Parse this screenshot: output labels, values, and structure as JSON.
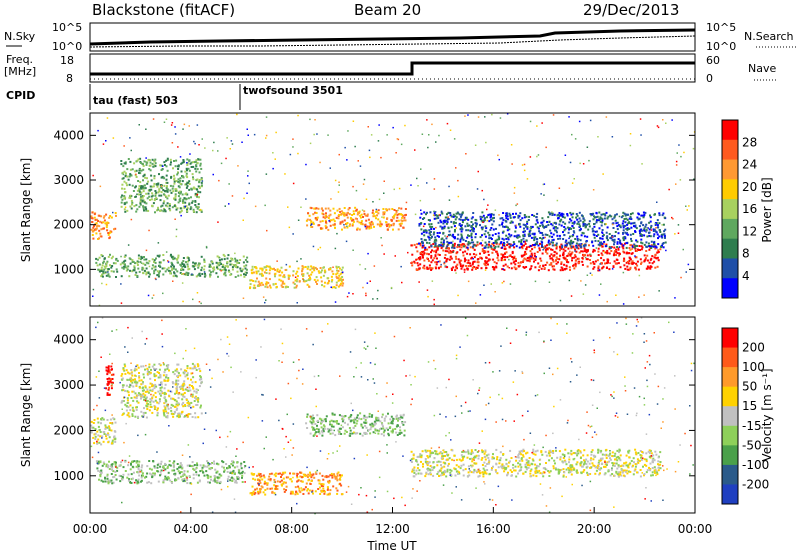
{
  "header": {
    "radar": "Blackstone (fitACF)",
    "beam": "Beam 20",
    "date": "29/Dec/2013"
  },
  "info_panels": {
    "nsky_label": "N.Sky",
    "nsearch_label": "N.Search",
    "noise_ticks": [
      "10^5",
      "10^0"
    ],
    "freq_label_line1": "Freq.",
    "freq_label_line2": "[MHz]",
    "freq_ticks": [
      "18",
      "8"
    ],
    "nave_label": "Nave",
    "nave_ticks": [
      "60",
      "0"
    ],
    "cpid_label": "CPID",
    "cpid_segments": [
      {
        "label": "tau (fast) 503",
        "start_hour": 0.0
      },
      {
        "label": "twofsound 3501",
        "start_hour": 6.0
      }
    ]
  },
  "colors": {
    "power_scale": [
      "#0000ff",
      "#1f4fa8",
      "#2f7d4f",
      "#5fa85f",
      "#a8d15f",
      "#ffcc00",
      "#ff9933",
      "#ff5a1f",
      "#ff0000"
    ],
    "velocity_scale": [
      "#1f3fc0",
      "#2a5a8a",
      "#4aa04a",
      "#8ed05a",
      "#c0c0c0",
      "#ffd200",
      "#ff9a2a",
      "#ff5a1a",
      "#ff0000"
    ]
  },
  "chart_data": [
    {
      "type": "heatmap",
      "name": "power_panel",
      "xlabel": "",
      "ylabel": "Slant Range [km]",
      "xlim": [
        0,
        24
      ],
      "ylim": [
        180,
        4500
      ],
      "y_ticks": [
        "1000",
        "2000",
        "3000",
        "4000"
      ],
      "y_tick_values": [
        1000,
        2000,
        3000,
        4000
      ],
      "colorbar_label": "Power [dB]",
      "colorbar_ticks": [
        "4",
        "8",
        "12",
        "16",
        "20",
        "24",
        "28"
      ],
      "colorbar_values": [
        4,
        8,
        12,
        16,
        20,
        24,
        28
      ],
      "colorbar_range": [
        0,
        32
      ],
      "features": [
        {
          "t0": 0.0,
          "t1": 1.0,
          "r0": 1700,
          "r1": 2300,
          "level": 6
        },
        {
          "t0": 0.2,
          "t1": 6.2,
          "r0": 850,
          "r1": 1350,
          "level": 3
        },
        {
          "t0": 1.2,
          "t1": 4.4,
          "r0": 2300,
          "r1": 3500,
          "level": 3
        },
        {
          "t0": 6.3,
          "t1": 10.0,
          "r0": 600,
          "r1": 1100,
          "level": 5
        },
        {
          "t0": 8.5,
          "t1": 12.5,
          "r0": 1900,
          "r1": 2400,
          "level": 6
        },
        {
          "t0": 12.7,
          "t1": 22.6,
          "r0": 1000,
          "r1": 1600,
          "level": 8
        },
        {
          "t0": 13.0,
          "t1": 22.8,
          "r0": 1500,
          "r1": 2300,
          "level": 1
        }
      ]
    },
    {
      "type": "heatmap",
      "name": "velocity_panel",
      "xlabel": "Time UT",
      "ylabel": "Slant Range [km]",
      "xlim": [
        0,
        24
      ],
      "ylim": [
        180,
        4500
      ],
      "x_ticks": [
        "00:00",
        "04:00",
        "08:00",
        "12:00",
        "16:00",
        "20:00",
        "00:00"
      ],
      "x_tick_values": [
        0,
        4,
        8,
        12,
        16,
        20,
        24
      ],
      "y_ticks": [
        "1000",
        "2000",
        "3000",
        "4000"
      ],
      "y_tick_values": [
        1000,
        2000,
        3000,
        4000
      ],
      "colorbar_label": "Velocity [m s⁻¹]",
      "colorbar_ticks": [
        "200",
        "100",
        "50",
        "15",
        "-15",
        "-50",
        "-100",
        "-200"
      ],
      "features": [
        {
          "t0": 0.0,
          "t1": 1.0,
          "r0": 1700,
          "r1": 2300,
          "level": 4
        },
        {
          "t0": 0.2,
          "t1": 6.2,
          "r0": 850,
          "r1": 1350,
          "level": 3
        },
        {
          "t0": 1.2,
          "t1": 4.4,
          "r0": 2300,
          "r1": 3500,
          "level": 4
        },
        {
          "t0": 6.3,
          "t1": 10.0,
          "r0": 600,
          "r1": 1100,
          "level": 6
        },
        {
          "t0": 8.5,
          "t1": 12.5,
          "r0": 1900,
          "r1": 2400,
          "level": 3
        },
        {
          "t0": 12.7,
          "t1": 22.6,
          "r0": 1000,
          "r1": 1600,
          "level": 4
        },
        {
          "t0": 0.6,
          "t1": 0.9,
          "r0": 2800,
          "r1": 3500,
          "level": 8
        }
      ]
    }
  ]
}
